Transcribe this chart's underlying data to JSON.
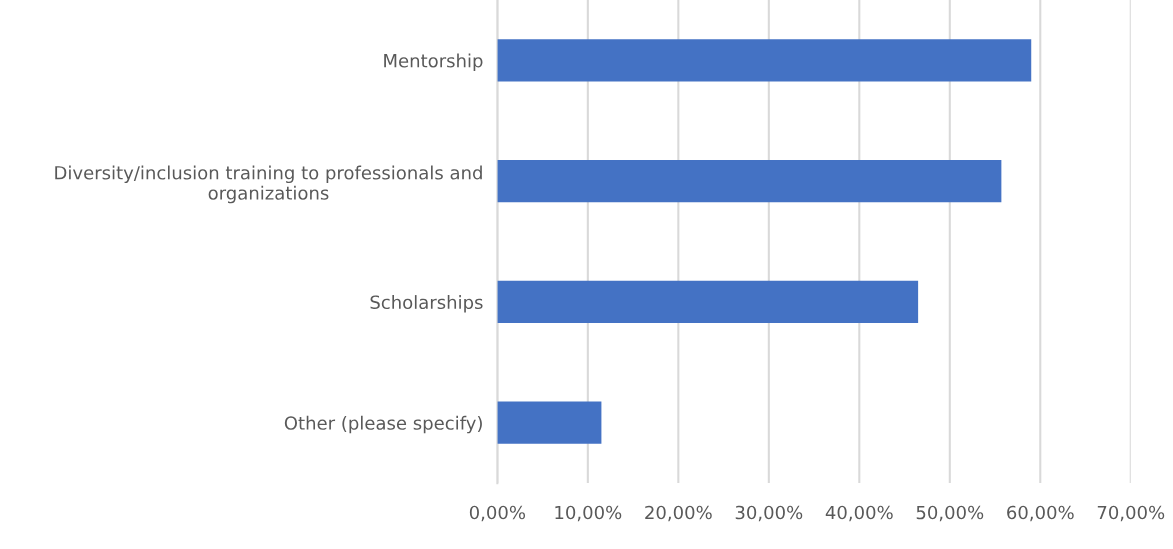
{
  "chart_data": {
    "type": "bar",
    "orientation": "horizontal",
    "categories": [
      "Mentorship",
      "Diversity/inclusion training to professionals and\norganizations",
      "Scholarships",
      "Other (please specify)"
    ],
    "values": [
      59.0,
      55.7,
      46.5,
      11.5
    ],
    "color": "#4472c4",
    "xlim": [
      0,
      70
    ],
    "xticks": [
      {
        "value": 0,
        "label": "0,00%"
      },
      {
        "value": 10,
        "label": "10,00%"
      },
      {
        "value": 20,
        "label": "20,00%"
      },
      {
        "value": 30,
        "label": "30,00%"
      },
      {
        "value": 40,
        "label": "40,00%"
      },
      {
        "value": 50,
        "label": "50,00%"
      },
      {
        "value": 60,
        "label": "60,00%"
      },
      {
        "value": 70,
        "label": "70,00%"
      }
    ],
    "grid": "x"
  }
}
